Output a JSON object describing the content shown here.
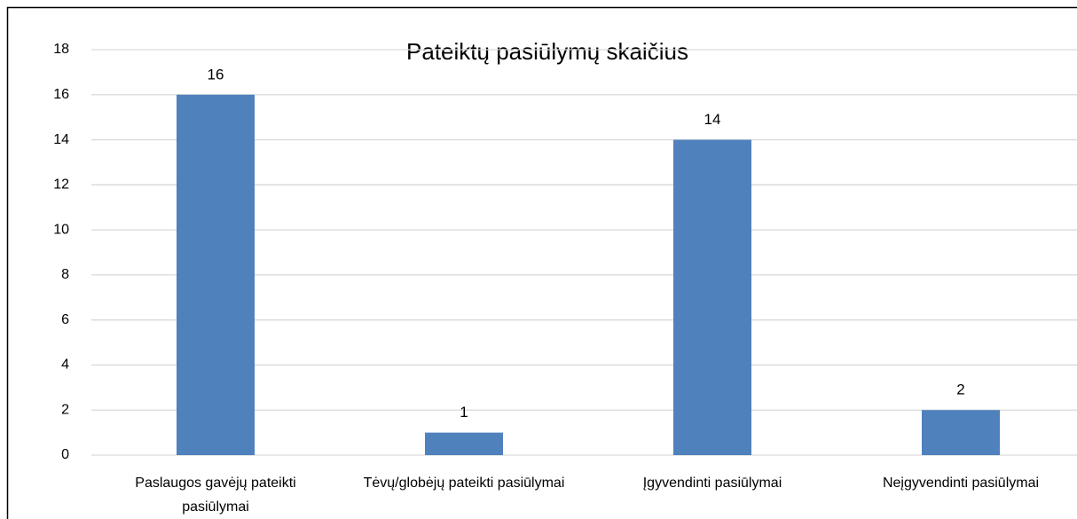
{
  "chart_data": {
    "type": "bar",
    "title": "Pateiktų pasiūlymų skaičius",
    "categories": [
      "Paslaugos gavėjų pateikti pasiūlymai",
      "Tėvų/globėjų pateikti pasiūlymai",
      "Įgyvendinti pasiūlymai",
      "Neįgyvendinti pasiūlymai"
    ],
    "values": [
      16,
      1,
      14,
      2
    ],
    "color": "#4f81bd",
    "ylim": [
      0,
      18
    ],
    "yticks": [
      0,
      2,
      4,
      6,
      8,
      10,
      12,
      14,
      16,
      18
    ],
    "grid": true
  }
}
